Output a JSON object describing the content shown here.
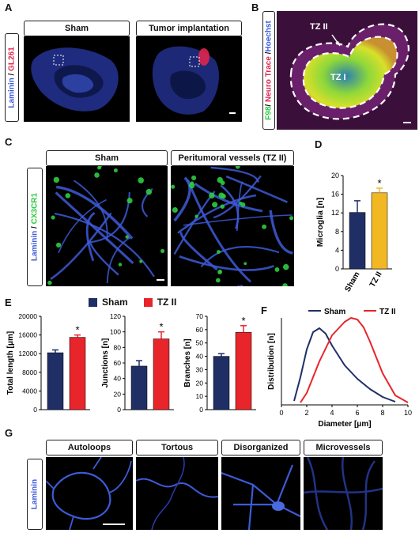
{
  "panels": {
    "A": "A",
    "B": "B",
    "C": "C",
    "D": "D",
    "E": "E",
    "F": "F",
    "G": "G"
  },
  "panelA": {
    "headers": [
      "Sham",
      "Tumor implantation"
    ],
    "side_label": {
      "part1": "Laminin",
      "sep": " / ",
      "part2": "GL261"
    }
  },
  "panelB": {
    "side_label": {
      "p1": "F98",
      "s1": "/ ",
      "p2": "Neuro Trace",
      "s2": " /",
      "p3": "Hoechst"
    },
    "zones": {
      "outer": "TZ II",
      "inner": "TZ I"
    }
  },
  "panelC": {
    "headers": [
      "Sham",
      "Peritumoral vessels (TZ II)"
    ],
    "side_label": {
      "part1": "Laminin",
      "sep": " / ",
      "part2": "CX3CR1"
    }
  },
  "legend": {
    "sham": "Sham",
    "tz": "TZ II"
  },
  "colors": {
    "sham": "#1f2f66",
    "tz": "#e8252a",
    "tz_d": "#f2b824",
    "laminin": "#3d5bd8",
    "cx3cr1": "#2ecc40",
    "gl261": "#e0254f"
  },
  "chart_data": [
    {
      "id": "D",
      "type": "bar",
      "categories": [
        "Sham",
        "TZ II"
      ],
      "values": [
        12.1,
        16.3
      ],
      "errors": [
        2.5,
        1.0
      ],
      "ylabel": "Microglia [n]",
      "ylim": [
        0,
        20
      ],
      "yticks": [
        "0",
        "4",
        "8",
        "12",
        "16",
        "20"
      ],
      "significance": "*"
    },
    {
      "id": "E1",
      "type": "bar",
      "categories": [
        "Sham",
        "TZ II"
      ],
      "values": [
        12200,
        15500
      ],
      "errors": [
        600,
        500
      ],
      "ylabel": "Total length [μm]",
      "ylim": [
        0,
        20000
      ],
      "yticks": [
        "0",
        "4000",
        "8000",
        "12000",
        "16000",
        "20000"
      ],
      "significance": "*"
    },
    {
      "id": "E2",
      "type": "bar",
      "categories": [
        "Sham",
        "TZ II"
      ],
      "values": [
        56,
        91
      ],
      "errors": [
        7,
        9
      ],
      "ylabel": "Junctions [n]",
      "ylim": [
        0,
        120
      ],
      "yticks": [
        "0",
        "20",
        "40",
        "60",
        "80",
        "100",
        "120"
      ],
      "significance": "*"
    },
    {
      "id": "E3",
      "type": "bar",
      "categories": [
        "Sham",
        "TZ II"
      ],
      "values": [
        40,
        58
      ],
      "errors": [
        2,
        5
      ],
      "ylabel": "Branches [n]",
      "ylim": [
        0,
        70
      ],
      "yticks": [
        "0",
        "10",
        "20",
        "30",
        "40",
        "50",
        "60",
        "70"
      ],
      "significance": "*"
    },
    {
      "id": "F",
      "type": "line",
      "xlabel": "Diameter [μm]",
      "ylabel": "Distribution [n]",
      "xlim": [
        0,
        10
      ],
      "xticks": [
        "0",
        "2",
        "4",
        "6",
        "8",
        "10"
      ],
      "ylim": [
        0,
        1.1
      ],
      "series": [
        {
          "name": "Sham",
          "x": [
            1,
            1.5,
            2,
            2.5,
            3,
            3.5,
            4,
            5,
            6,
            7,
            8,
            9
          ],
          "y": [
            0.05,
            0.35,
            0.7,
            0.92,
            0.97,
            0.9,
            0.75,
            0.5,
            0.33,
            0.2,
            0.1,
            0.04
          ]
        },
        {
          "name": "TZ II",
          "x": [
            1.5,
            2,
            3,
            4,
            5,
            5.5,
            6,
            6.5,
            7,
            8,
            9,
            10
          ],
          "y": [
            0.03,
            0.15,
            0.55,
            0.88,
            1.05,
            1.1,
            1.08,
            0.98,
            0.8,
            0.4,
            0.12,
            0.03
          ]
        }
      ]
    }
  ],
  "panelG": {
    "headers": [
      "Autoloops",
      "Tortous",
      "Disorganized",
      "Microvessels"
    ],
    "side_label": "Laminin"
  }
}
